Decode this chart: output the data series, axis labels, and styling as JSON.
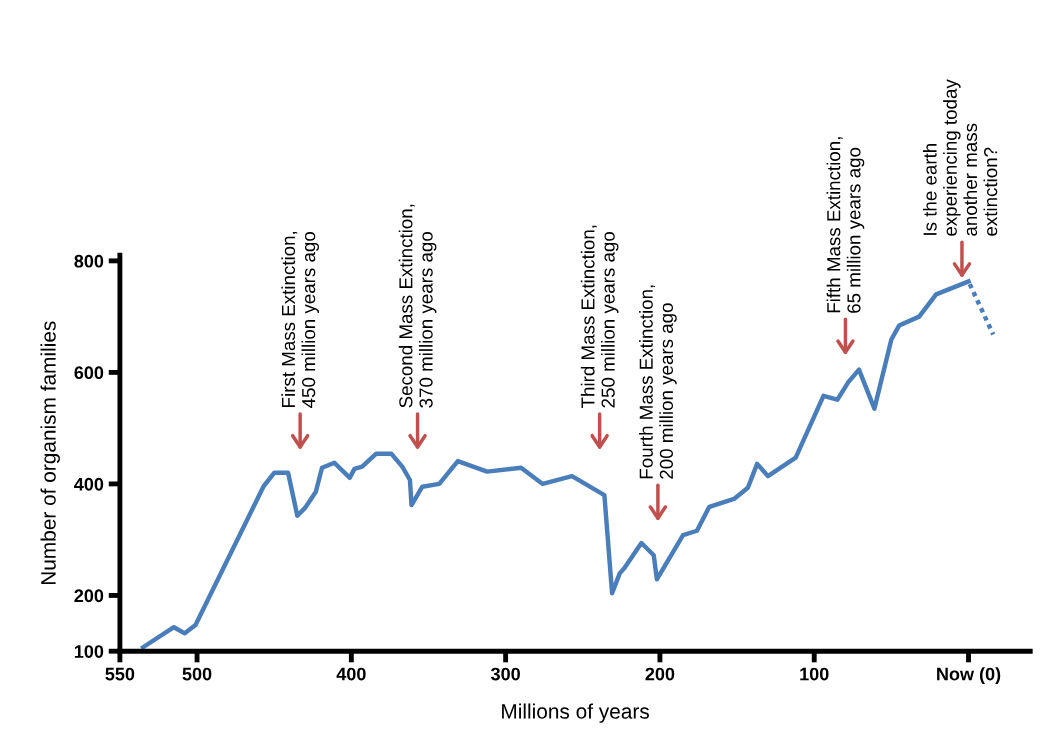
{
  "chart_data": {
    "type": "line",
    "xlabel": "Millions of years",
    "ylabel": "Number of organism families",
    "xlim": [
      550,
      -40
    ],
    "ylim": [
      100,
      810
    ],
    "xticks": [
      550,
      500,
      400,
      300,
      200,
      100,
      {
        "value": 0,
        "label": "Now (0)"
      }
    ],
    "yticks": [
      100,
      200,
      400,
      600,
      800
    ],
    "grid": false,
    "legend": false,
    "marker": "none",
    "series": [
      {
        "color": "#4a7ebb",
        "line_style": "solid",
        "x": [
          535,
          515,
          508,
          501,
          457,
          450,
          441,
          435,
          430,
          423,
          419,
          411,
          401,
          398,
          393,
          384,
          374,
          367,
          362,
          361,
          354,
          343,
          331,
          312,
          290,
          276,
          257,
          236,
          231,
          226,
          223,
          212,
          204,
          202,
          185,
          176,
          168,
          152,
          143,
          137,
          130,
          112,
          94,
          85,
          78,
          71,
          61,
          50,
          45,
          32,
          21,
          0
        ],
        "values": [
          107,
          143,
          132,
          147,
          395,
          420,
          420,
          343,
          357,
          386,
          429,
          438,
          411,
          427,
          431,
          454,
          454,
          431,
          407,
          362,
          395,
          400,
          441,
          422,
          429,
          400,
          414,
          380,
          204,
          240,
          249,
          294,
          272,
          229,
          308,
          316,
          359,
          373,
          393,
          436,
          414,
          447,
          558,
          551,
          582,
          605,
          535,
          659,
          684,
          700,
          740,
          763
        ]
      },
      {
        "color": "#4a7ebb",
        "line_style": "dotted",
        "x": [
          0,
          -16
        ],
        "values": [
          763,
          668
        ]
      }
    ],
    "annotations": [
      "First Mass Extinction,\n450 million years ago",
      "Second Mass Extinction,\n370 million years ago",
      "Third Mass Extinction,\n250 million years ago",
      "Fourth Mass Extinction,\n200 million years ago",
      "Fifth Mass Extinction,\n65 million years ago",
      "Is the earth\nexperiencing today\nanother mass\nextinction?"
    ]
  }
}
